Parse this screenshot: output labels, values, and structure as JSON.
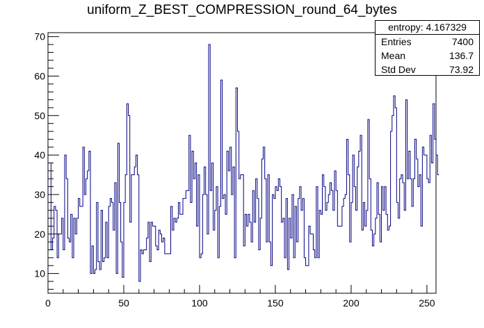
{
  "title": "uniform_Z_BEST_COMPRESSION_round_64_bytes",
  "stats": {
    "header": "entropy: 4.167329",
    "rows": [
      {
        "label": "Entries",
        "value": "7400"
      },
      {
        "label": "Mean",
        "value": "136.7"
      },
      {
        "label": "Std Dev",
        "value": "73.92"
      }
    ]
  },
  "colors": {
    "line": "#000080",
    "axis": "#000000"
  },
  "chart_data": {
    "type": "step-histogram",
    "title": "uniform_Z_BEST_COMPRESSION_round_64_bytes",
    "xlim": [
      0,
      256
    ],
    "ylim": [
      5,
      71
    ],
    "xticks": [
      0,
      50,
      100,
      150,
      200,
      250
    ],
    "yticks": [
      10,
      20,
      30,
      40,
      50,
      60,
      70
    ],
    "bin_width": 1,
    "values": [
      38,
      38,
      16,
      19,
      27,
      26,
      14,
      20,
      20,
      24,
      16,
      40,
      34,
      19,
      18,
      25,
      14,
      24,
      20,
      24,
      29,
      27,
      27,
      42,
      30,
      34,
      36,
      41,
      10,
      17,
      10,
      11,
      28,
      13,
      11,
      26,
      13,
      14,
      23,
      14,
      27,
      29,
      28,
      21,
      33,
      10,
      43,
      28,
      18,
      9,
      28,
      35,
      53,
      50,
      23,
      35,
      35,
      37,
      40,
      35,
      8,
      16,
      15,
      16,
      16,
      19,
      23,
      13,
      23,
      22,
      22,
      17,
      16,
      21,
      20,
      18,
      19,
      15,
      15,
      15,
      15,
      27,
      21,
      24,
      23,
      24,
      28,
      25,
      25,
      29,
      29,
      31,
      31,
      45,
      28,
      41,
      34,
      38,
      22,
      35,
      14,
      15,
      30,
      37,
      30,
      20,
      68,
      31,
      38,
      21,
      26,
      32,
      14,
      27,
      59,
      29,
      30,
      25,
      41,
      36,
      42,
      30,
      37,
      14,
      57,
      46,
      34,
      35,
      35,
      17,
      25,
      22,
      25,
      23,
      18,
      31,
      23,
      34,
      29,
      16,
      24,
      39,
      42,
      34,
      18,
      35,
      18,
      12,
      30,
      29,
      32,
      31,
      34,
      32,
      23,
      24,
      14,
      29,
      11,
      24,
      19,
      30,
      14,
      27,
      18,
      29,
      32,
      26,
      29,
      14,
      12,
      12,
      22,
      20,
      20,
      16,
      14,
      32,
      14,
      26,
      25,
      35,
      32,
      26,
      28,
      30,
      33,
      31,
      26,
      36,
      31,
      22,
      22,
      22,
      27,
      29,
      30,
      44,
      35,
      18,
      28,
      40,
      32,
      26,
      37,
      41,
      45,
      21,
      28,
      22,
      26,
      49,
      34,
      21,
      17,
      20,
      24,
      33,
      25,
      18,
      32,
      26,
      32,
      25,
      21,
      22,
      46,
      50,
      55,
      52,
      28,
      24,
      34,
      35,
      33,
      26,
      54,
      34,
      41,
      34,
      27,
      34,
      44,
      39,
      32,
      35,
      22,
      42,
      40,
      40,
      34,
      33,
      45,
      38,
      53,
      44,
      40,
      35
    ],
    "xlabel": "",
    "ylabel": ""
  }
}
